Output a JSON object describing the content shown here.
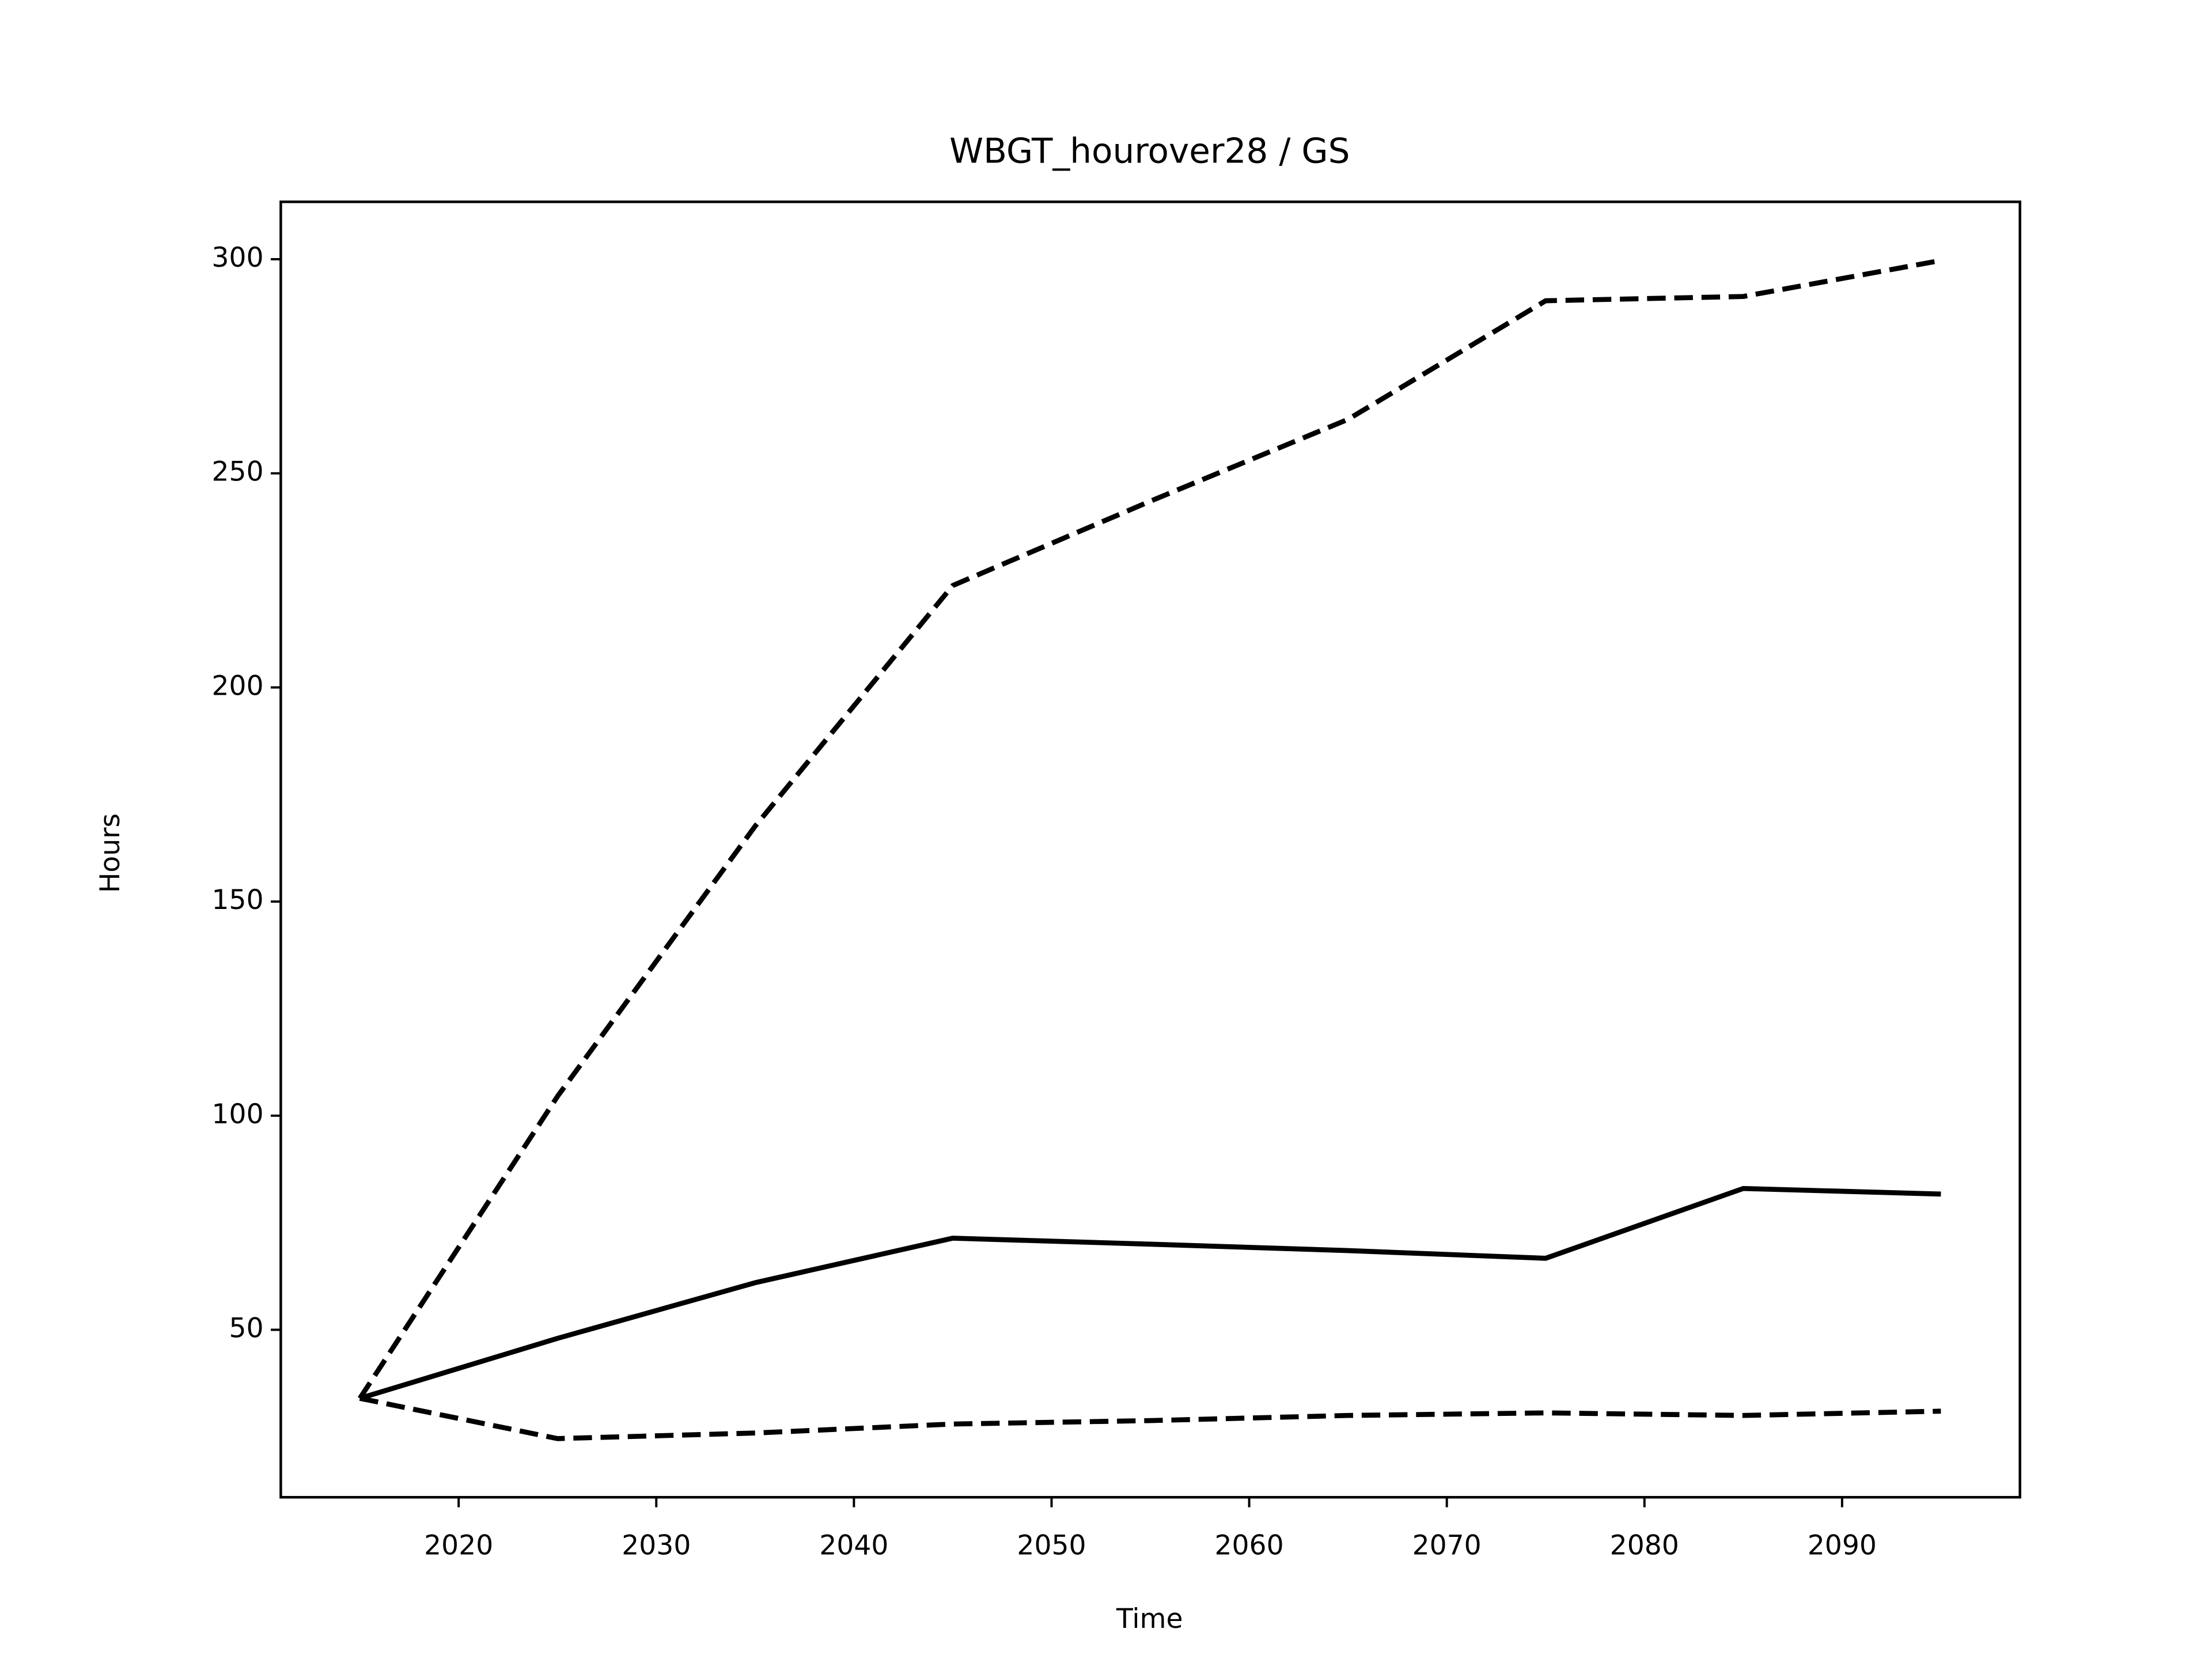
{
  "chart_data": {
    "type": "line",
    "title": "WBGT_hourover28 / GS",
    "x_label": "Time",
    "y_label": "Hours",
    "x": [
      2015,
      2025,
      2035,
      2045,
      2055,
      2065,
      2075,
      2085,
      2095
    ],
    "series": [
      {
        "color": "#000000",
        "dash": "solid",
        "values": [
          34,
          48,
          61,
          71.4,
          70,
          68.5,
          66.7,
          83,
          81.7
        ]
      },
      {
        "color": "#000000",
        "dash": "dashed",
        "values": [
          34,
          104.5,
          167.6,
          223.8,
          243.5,
          262.6,
          290.3,
          291.3,
          299.7
        ]
      },
      {
        "color": "#000000",
        "dash": "dashed",
        "values": [
          34,
          24.6,
          25.9,
          28,
          28.8,
          30,
          30.6,
          30,
          31
        ]
      }
    ],
    "xlim": [
      2011,
      2099
    ],
    "ylim": [
      10.9,
      313.4
    ],
    "xticks": [
      2020,
      2030,
      2040,
      2050,
      2060,
      2070,
      2080,
      2090
    ],
    "yticks": [
      50,
      100,
      150,
      200,
      250,
      300
    ],
    "grid": false
  }
}
